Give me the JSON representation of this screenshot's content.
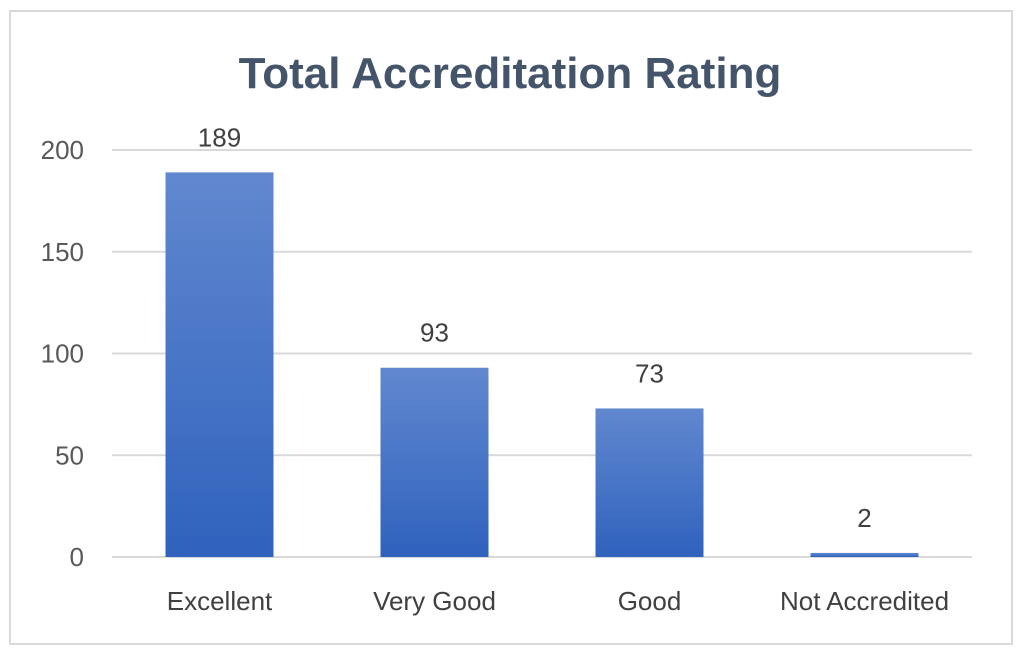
{
  "chart_data": {
    "type": "bar",
    "title": "Total Accreditation Rating",
    "categories": [
      "Excellent",
      "Very Good",
      "Good",
      "Not Accredited"
    ],
    "values": [
      189,
      93,
      73,
      2
    ],
    "data_labels": [
      "189",
      "93",
      "73",
      "2"
    ],
    "ylim": [
      0,
      200
    ],
    "yticks": [
      0,
      50,
      100,
      150,
      200
    ],
    "ytick_labels": [
      "0",
      "50",
      "100",
      "150",
      "200"
    ],
    "xlabel": "",
    "ylabel": "",
    "grid": true,
    "legend": "none",
    "bar_color": "#4472c4"
  }
}
